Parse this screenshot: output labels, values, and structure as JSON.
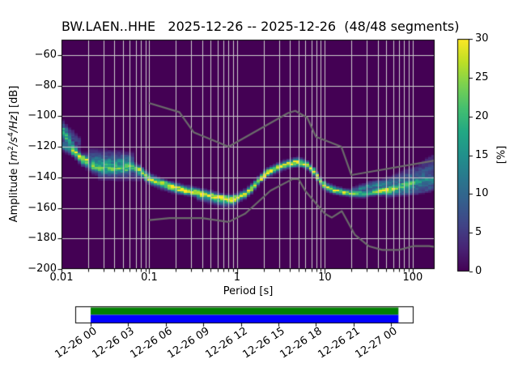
{
  "title": "BW.LAEN..HHE   2025-12-26 -- 2025-12-26  (48/48 segments)",
  "colors": {
    "figure_background": "#ffffff",
    "plot_background": "#440154",
    "grid": "#cccccc",
    "noise_model_line": "#6b6b6b",
    "spine": "#000000",
    "timeline_green": "#008000",
    "timeline_blue": "#0000ff",
    "text": "#000000"
  },
  "x_axis": {
    "label": "Period [s]",
    "scale": "log",
    "min": 0.01,
    "max": 177.8,
    "tick_values": [
      0.01,
      0.1,
      1,
      10,
      100
    ],
    "tick_labels": [
      "0.01",
      "0.1",
      "1",
      "10",
      "100"
    ]
  },
  "y_axis": {
    "label_parts": {
      "prefix": "Amplitude [",
      "m": "m",
      "sup2": "2",
      "s": "/s",
      "sup4": "4",
      "hz": "/Hz",
      "suffix": "] [dB]"
    },
    "min": -200,
    "max": -50,
    "tick_values": [
      -60,
      -80,
      -100,
      -120,
      -140,
      -160,
      -180,
      -200
    ],
    "tick_labels": [
      "−60",
      "−80",
      "−100",
      "−120",
      "−140",
      "−160",
      "−180",
      "−200"
    ]
  },
  "colorbar": {
    "label": "[%]",
    "min": 0,
    "max": 30,
    "tick_values": [
      0,
      5,
      10,
      15,
      20,
      25,
      30
    ],
    "tick_labels": [
      "0",
      "5",
      "10",
      "15",
      "20",
      "25",
      "30"
    ],
    "colormap": "viridis",
    "colormap_stops": [
      [
        0.0,
        "#440154"
      ],
      [
        0.1,
        "#482475"
      ],
      [
        0.2,
        "#414487"
      ],
      [
        0.3,
        "#355f8d"
      ],
      [
        0.4,
        "#2a788e"
      ],
      [
        0.5,
        "#21918c"
      ],
      [
        0.6,
        "#22a884"
      ],
      [
        0.7,
        "#44bf70"
      ],
      [
        0.8,
        "#7ad151"
      ],
      [
        0.9,
        "#bddf26"
      ],
      [
        1.0,
        "#fde725"
      ]
    ]
  },
  "timeline": {
    "tick_labels": [
      "12-26 00",
      "12-26 03",
      "12-26 06",
      "12-26 09",
      "12-26 12",
      "12-26 15",
      "12-26 18",
      "12-26 21",
      "12-27 00"
    ]
  },
  "chart_data": {
    "type": "heatmap",
    "title": "BW.LAEN..HHE   2025-12-26 -- 2025-12-26  (48/48 segments)",
    "station": "BW.LAEN..HHE",
    "date_range": "2025-12-26 -- 2025-12-26",
    "segments_used": 48,
    "segments_total": 48,
    "xlabel": "Period [s]",
    "xscale": "log",
    "xlim": [
      0.01,
      177.8
    ],
    "ylabel": "Amplitude [m^2/s^4/Hz] [dB]",
    "ylim": [
      -200,
      -50
    ],
    "grid": true,
    "colorbar": {
      "label": "[%]",
      "min": 0,
      "max": 30,
      "colormap": "viridis"
    },
    "period_bins_per_octave": 8,
    "db_bin_width": 1,
    "psd_mode_curve": {
      "period_s": [
        0.01,
        0.012,
        0.0135,
        0.0166,
        0.02,
        0.024,
        0.03,
        0.04,
        0.055,
        0.065,
        0.075,
        0.085,
        0.095,
        0.11,
        0.13,
        0.17,
        0.25,
        0.35,
        0.5,
        0.7,
        0.85,
        1.0,
        1.2,
        1.45,
        1.8,
        2.2,
        3.0,
        4.0,
        5.0,
        6.3,
        7.5,
        8.7,
        10.3,
        13,
        17,
        22,
        28,
        40,
        60,
        90,
        130,
        178
      ],
      "db": [
        -110,
        -115,
        -120,
        -127,
        -131.5,
        -134,
        -134.5,
        -135,
        -134.5,
        -133.5,
        -135,
        -137.5,
        -140,
        -142,
        -143.5,
        -146,
        -148.5,
        -150,
        -152,
        -154,
        -154.5,
        -153.5,
        -151.5,
        -147.5,
        -141.5,
        -137,
        -133.5,
        -131,
        -130,
        -132,
        -136,
        -141.5,
        -146.5,
        -148.5,
        -150,
        -150.8,
        -151,
        -149.5,
        -147,
        -144.5,
        -142,
        -140
      ],
      "amp_percent": [
        22,
        18,
        16,
        14,
        14,
        15,
        15,
        16,
        16,
        20,
        24,
        27,
        29,
        30,
        30,
        30,
        30,
        30,
        30,
        30,
        30,
        30,
        30,
        30,
        30,
        30,
        30,
        30,
        30,
        30,
        30,
        30,
        28,
        26,
        25,
        24,
        22,
        18,
        15,
        14,
        13,
        13
      ],
      "sigma_profile": {
        "period_s": [
          0.01,
          0.02,
          0.08,
          0.2,
          5,
          15,
          178
        ],
        "db_sigma": [
          2.5,
          2.2,
          1.8,
          1.6,
          1.5,
          1.3,
          1.1
        ]
      }
    },
    "side_bands": [
      {
        "name": "left-upper-cluster",
        "period_s": [
          0.01,
          0.013,
          0.016,
          0.02
        ],
        "db": [
          -119,
          -122.5,
          -126.5,
          -130.5
        ],
        "amp": 14,
        "sigma": 1.8
      },
      {
        "name": "left-top-tail",
        "period_s": [
          0.01,
          0.013,
          0.017
        ],
        "db": [
          -105.5,
          -112,
          -118
        ],
        "amp": 6,
        "sigma": 2.2
      },
      {
        "name": "cloud-upper-streak",
        "period_s": [
          0.019,
          0.03,
          0.05,
          0.07
        ],
        "db": [
          -127,
          -128.5,
          -129,
          -130
        ],
        "amp": 7,
        "sigma": 2.0
      },
      {
        "name": "cloud-top-faint",
        "period_s": [
          0.02,
          0.04,
          0.065
        ],
        "db": [
          -123.5,
          -124.5,
          -126
        ],
        "amp": 4,
        "sigma": 1.8
      },
      {
        "name": "cloud-core",
        "period_s": [
          0.022,
          0.04,
          0.06
        ],
        "db": [
          -131.5,
          -132,
          -131.5
        ],
        "amp": 9,
        "sigma": 2.6
      },
      {
        "name": "cloud-lower-faint",
        "period_s": [
          0.025,
          0.05,
          0.08
        ],
        "db": [
          -138.5,
          -139,
          -139.5
        ],
        "amp": 4,
        "sigma": 2.2
      },
      {
        "name": "dip-lower-tail",
        "period_s": [
          0.35,
          0.7,
          1.0
        ],
        "db": [
          -152.5,
          -157,
          -156.5
        ],
        "amp": 7,
        "sigma": 1.6
      },
      {
        "name": "fan-1",
        "period_s": [
          30,
          60,
          110,
          178
        ],
        "db": [
          -145,
          -140.5,
          -134,
          -126.5
        ],
        "amp": 4,
        "sigma": 1.4
      },
      {
        "name": "fan-2",
        "period_s": [
          25,
          55,
          110,
          178
        ],
        "db": [
          -147,
          -143,
          -137,
          -130.5
        ],
        "amp": 5.5,
        "sigma": 1.3
      },
      {
        "name": "fan-3",
        "period_s": [
          20,
          50,
          110,
          178
        ],
        "db": [
          -148.5,
          -145,
          -139.5,
          -133.5
        ],
        "amp": 7,
        "sigma": 1.3
      },
      {
        "name": "fan-4",
        "period_s": [
          35,
          80,
          178
        ],
        "db": [
          -150,
          -145,
          -136.5
        ],
        "amp": 6,
        "sigma": 1.3
      },
      {
        "name": "fan-5",
        "period_s": [
          40,
          90,
          178
        ],
        "db": [
          -150.5,
          -147,
          -143
        ],
        "amp": 10,
        "sigma": 1.4
      },
      {
        "name": "fan-6",
        "period_s": [
          50,
          100,
          178
        ],
        "db": [
          -151.5,
          -149.5,
          -146.5
        ],
        "amp": 7,
        "sigma": 1.4
      }
    ],
    "noise_models": {
      "high_noise_model": {
        "period_s": [
          0.1,
          0.22,
          0.32,
          0.8,
          3.8,
          4.6,
          6.3,
          7.9,
          15.4,
          20,
          177.8
        ],
        "db": [
          -91.5,
          -97.4,
          -110.5,
          -120.0,
          -98.0,
          -96.5,
          -101.0,
          -113.5,
          -120.0,
          -138.5,
          -129.0
        ]
      },
      "low_noise_model": {
        "period_s": [
          0.1,
          0.17,
          0.4,
          0.8,
          1.24,
          2.4,
          4.3,
          5.0,
          6.0,
          10.0,
          12.0,
          15.6,
          21.9,
          31.6,
          45,
          70,
          101,
          154,
          177.8
        ],
        "db": [
          -168.0,
          -166.7,
          -166.7,
          -169.2,
          -163.7,
          -148.7,
          -141.1,
          -141.1,
          -149.0,
          -163.8,
          -166.3,
          -162.1,
          -177.5,
          -185.0,
          -187.5,
          -187.5,
          -185.0,
          -185.0,
          -185.5
        ]
      }
    },
    "speckle": 0.28
  }
}
